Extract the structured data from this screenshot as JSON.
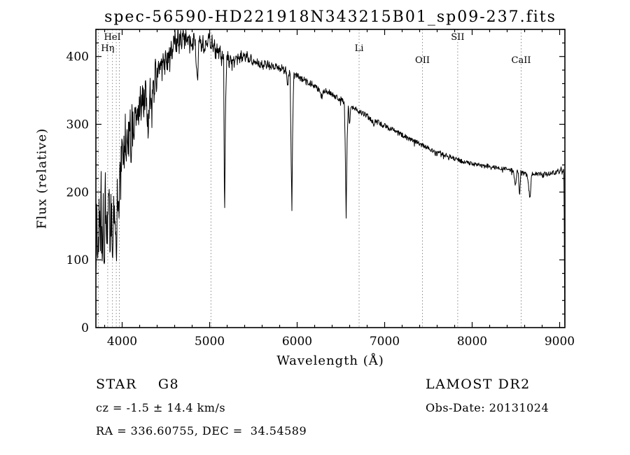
{
  "chart_data": {
    "type": "line",
    "title": "spec-56590-HD221918N343215B01_sp09-237.fits",
    "xlabel": "Wavelength (Å)",
    "ylabel": "Flux (relative)",
    "xlim": [
      3700,
      9060
    ],
    "ylim": [
      0,
      440
    ],
    "x_ticks": [
      4000,
      5000,
      6000,
      7000,
      8000,
      9000
    ],
    "x_minor_step": 200,
    "y_ticks": [
      0,
      100,
      200,
      300,
      400
    ],
    "y_minor_step": 20,
    "grid": false,
    "frame_color": "#000000",
    "marker_line_color": "#8a8a8a",
    "marker_lines": [
      3727,
      3835,
      3889,
      3933,
      3968,
      5015,
      6708,
      7432,
      7835,
      8560
    ],
    "line_markers": [
      {
        "label": "HeI",
        "x": 3889,
        "row": 0
      },
      {
        "label": "Hη",
        "x": 3835,
        "row": 1
      },
      {
        "label": "Li",
        "x": 6708,
        "row": 1
      },
      {
        "label": "SII",
        "x": 7835,
        "row": 0
      },
      {
        "label": "OII",
        "x": 7432,
        "row": 2
      },
      {
        "label": "CaII",
        "x": 8560,
        "row": 2
      }
    ],
    "noise_seed": 42,
    "noise_profile": [
      [
        3700,
        50
      ],
      [
        3950,
        42
      ],
      [
        4100,
        30
      ],
      [
        4300,
        22
      ],
      [
        4600,
        15
      ],
      [
        4900,
        11
      ],
      [
        5200,
        8
      ],
      [
        5600,
        6
      ],
      [
        6000,
        5
      ],
      [
        6600,
        4
      ],
      [
        7200,
        4
      ],
      [
        8000,
        3
      ],
      [
        9058,
        3
      ]
    ],
    "series": [
      {
        "name": "spectrum",
        "color": "#000000",
        "points": [
          [
            3700,
            70
          ],
          [
            3712,
            165
          ],
          [
            3724,
            75
          ],
          [
            3736,
            180
          ],
          [
            3748,
            100
          ],
          [
            3760,
            190
          ],
          [
            3772,
            85
          ],
          [
            3784,
            170
          ],
          [
            3796,
            110
          ],
          [
            3808,
            185
          ],
          [
            3820,
            105
          ],
          [
            3835,
            150
          ],
          [
            3850,
            215
          ],
          [
            3862,
            125
          ],
          [
            3874,
            185
          ],
          [
            3889,
            100
          ],
          [
            3902,
            205
          ],
          [
            3914,
            160
          ],
          [
            3925,
            175
          ],
          [
            3933,
            90
          ],
          [
            3945,
            225
          ],
          [
            3958,
            165
          ],
          [
            3970,
            235
          ],
          [
            3980,
            205
          ],
          [
            3990,
            240
          ],
          [
            4000,
            260
          ],
          [
            4015,
            225
          ],
          [
            4030,
            295
          ],
          [
            4045,
            260
          ],
          [
            4060,
            305
          ],
          [
            4075,
            270
          ],
          [
            4090,
            310
          ],
          [
            4101,
            245
          ],
          [
            4115,
            315
          ],
          [
            4130,
            285
          ],
          [
            4145,
            325
          ],
          [
            4160,
            295
          ],
          [
            4175,
            330
          ],
          [
            4190,
            305
          ],
          [
            4205,
            345
          ],
          [
            4220,
            315
          ],
          [
            4235,
            350
          ],
          [
            4250,
            325
          ],
          [
            4265,
            345
          ],
          [
            4280,
            330
          ],
          [
            4300,
            285
          ],
          [
            4315,
            360
          ],
          [
            4330,
            330
          ],
          [
            4340,
            305
          ],
          [
            4352,
            380
          ],
          [
            4366,
            345
          ],
          [
            4380,
            385
          ],
          [
            4395,
            355
          ],
          [
            4410,
            390
          ],
          [
            4425,
            365
          ],
          [
            4440,
            398
          ],
          [
            4455,
            375
          ],
          [
            4470,
            400
          ],
          [
            4485,
            382
          ],
          [
            4500,
            405
          ],
          [
            4515,
            388
          ],
          [
            4530,
            410
          ],
          [
            4545,
            392
          ],
          [
            4560,
            418
          ],
          [
            4575,
            400
          ],
          [
            4590,
            422
          ],
          [
            4605,
            430
          ],
          [
            4620,
            412
          ],
          [
            4635,
            432
          ],
          [
            4650,
            415
          ],
          [
            4665,
            435
          ],
          [
            4680,
            418
          ],
          [
            4700,
            438
          ],
          [
            4715,
            420
          ],
          [
            4730,
            434
          ],
          [
            4745,
            416
          ],
          [
            4760,
            430
          ],
          [
            4775,
            414
          ],
          [
            4790,
            428
          ],
          [
            4805,
            412
          ],
          [
            4820,
            430
          ],
          [
            4840,
            410
          ],
          [
            4861,
            358
          ],
          [
            4875,
            415
          ],
          [
            4890,
            428
          ],
          [
            4905,
            412
          ],
          [
            4920,
            426
          ],
          [
            4935,
            410
          ],
          [
            4950,
            425
          ],
          [
            4965,
            412
          ],
          [
            4980,
            424
          ],
          [
            5000,
            430
          ],
          [
            5015,
            415
          ],
          [
            5030,
            425
          ],
          [
            5045,
            410
          ],
          [
            5060,
            420
          ],
          [
            5075,
            406
          ],
          [
            5090,
            415
          ],
          [
            5105,
            405
          ],
          [
            5120,
            412
          ],
          [
            5135,
            398
          ],
          [
            5150,
            405
          ],
          [
            5160,
            395
          ],
          [
            5170,
            150
          ],
          [
            5180,
            310
          ],
          [
            5195,
            395
          ],
          [
            5210,
            402
          ],
          [
            5225,
            388
          ],
          [
            5240,
            398
          ],
          [
            5255,
            386
          ],
          [
            5270,
            396
          ],
          [
            5285,
            388
          ],
          [
            5300,
            404
          ],
          [
            5315,
            392
          ],
          [
            5330,
            404
          ],
          [
            5345,
            394
          ],
          [
            5360,
            402
          ],
          [
            5375,
            392
          ],
          [
            5390,
            400
          ],
          [
            5410,
            396
          ],
          [
            5430,
            402
          ],
          [
            5450,
            392
          ],
          [
            5470,
            398
          ],
          [
            5490,
            390
          ],
          [
            5510,
            396
          ],
          [
            5530,
            388
          ],
          [
            5550,
            394
          ],
          [
            5570,
            386
          ],
          [
            5590,
            392
          ],
          [
            5610,
            386
          ],
          [
            5630,
            391
          ],
          [
            5650,
            385
          ],
          [
            5670,
            390
          ],
          [
            5690,
            384
          ],
          [
            5710,
            388
          ],
          [
            5730,
            383
          ],
          [
            5750,
            387
          ],
          [
            5770,
            382
          ],
          [
            5790,
            386
          ],
          [
            5810,
            381
          ],
          [
            5830,
            384
          ],
          [
            5850,
            379
          ],
          [
            5870,
            382
          ],
          [
            5890,
            352
          ],
          [
            5905,
            378
          ],
          [
            5920,
            372
          ],
          [
            5932,
            240
          ],
          [
            5940,
            175
          ],
          [
            5950,
            305
          ],
          [
            5962,
            374
          ],
          [
            5975,
            370
          ],
          [
            5990,
            373
          ],
          [
            6010,
            371
          ],
          [
            6030,
            369
          ],
          [
            6050,
            367
          ],
          [
            6070,
            366
          ],
          [
            6090,
            364
          ],
          [
            6110,
            363
          ],
          [
            6130,
            361
          ],
          [
            6150,
            360
          ],
          [
            6170,
            359
          ],
          [
            6190,
            357
          ],
          [
            6210,
            356
          ],
          [
            6230,
            354
          ],
          [
            6250,
            352
          ],
          [
            6270,
            344
          ],
          [
            6285,
            340
          ],
          [
            6300,
            352
          ],
          [
            6320,
            350
          ],
          [
            6340,
            349
          ],
          [
            6360,
            347
          ],
          [
            6380,
            346
          ],
          [
            6400,
            344
          ],
          [
            6420,
            343
          ],
          [
            6440,
            341
          ],
          [
            6460,
            340
          ],
          [
            6480,
            338
          ],
          [
            6500,
            337
          ],
          [
            6520,
            334
          ],
          [
            6540,
            330
          ],
          [
            6552,
            245
          ],
          [
            6560,
            165
          ],
          [
            6572,
            282
          ],
          [
            6585,
            330
          ],
          [
            6598,
            298
          ],
          [
            6612,
            328
          ],
          [
            6630,
            326
          ],
          [
            6650,
            324
          ],
          [
            6670,
            322
          ],
          [
            6690,
            321
          ],
          [
            6710,
            319
          ],
          [
            6740,
            317
          ],
          [
            6770,
            315
          ],
          [
            6800,
            312
          ],
          [
            6830,
            309
          ],
          [
            6860,
            305
          ],
          [
            6875,
            298
          ],
          [
            6890,
            305
          ],
          [
            6920,
            303
          ],
          [
            6950,
            301
          ],
          [
            6980,
            299
          ],
          [
            7010,
            297
          ],
          [
            7040,
            295
          ],
          [
            7070,
            293
          ],
          [
            7100,
            291
          ],
          [
            7130,
            289
          ],
          [
            7160,
            287
          ],
          [
            7190,
            285
          ],
          [
            7220,
            283
          ],
          [
            7250,
            281
          ],
          [
            7280,
            279
          ],
          [
            7310,
            277
          ],
          [
            7340,
            275
          ],
          [
            7370,
            273
          ],
          [
            7400,
            271
          ],
          [
            7430,
            269
          ],
          [
            7460,
            267
          ],
          [
            7490,
            265
          ],
          [
            7520,
            263
          ],
          [
            7550,
            261
          ],
          [
            7580,
            257
          ],
          [
            7600,
            257
          ],
          [
            7630,
            258
          ],
          [
            7660,
            256
          ],
          [
            7690,
            255
          ],
          [
            7720,
            253
          ],
          [
            7750,
            252
          ],
          [
            7780,
            250
          ],
          [
            7810,
            249
          ],
          [
            7840,
            248
          ],
          [
            7870,
            246
          ],
          [
            7900,
            245
          ],
          [
            7930,
            244
          ],
          [
            7960,
            243
          ],
          [
            7990,
            242
          ],
          [
            8020,
            241
          ],
          [
            8050,
            240
          ],
          [
            8080,
            240
          ],
          [
            8110,
            239
          ],
          [
            8140,
            238
          ],
          [
            8170,
            239
          ],
          [
            8200,
            237
          ],
          [
            8230,
            238
          ],
          [
            8260,
            236
          ],
          [
            8290,
            237
          ],
          [
            8320,
            235
          ],
          [
            8350,
            236
          ],
          [
            8380,
            234
          ],
          [
            8410,
            235
          ],
          [
            8440,
            233
          ],
          [
            8470,
            231
          ],
          [
            8498,
            208
          ],
          [
            8512,
            231
          ],
          [
            8528,
            229
          ],
          [
            8542,
            190
          ],
          [
            8556,
            229
          ],
          [
            8580,
            228
          ],
          [
            8605,
            227
          ],
          [
            8630,
            225
          ],
          [
            8662,
            188
          ],
          [
            8678,
            227
          ],
          [
            8700,
            226
          ],
          [
            8725,
            227
          ],
          [
            8750,
            226
          ],
          [
            8775,
            227
          ],
          [
            8800,
            226
          ],
          [
            8825,
            227
          ],
          [
            8850,
            226
          ],
          [
            8875,
            227
          ],
          [
            8900,
            228
          ],
          [
            8925,
            229
          ],
          [
            8950,
            228
          ],
          [
            8975,
            232
          ],
          [
            9000,
            229
          ],
          [
            9015,
            236
          ],
          [
            9030,
            227
          ],
          [
            9042,
            234
          ],
          [
            9050,
            228
          ],
          [
            9054,
            110
          ],
          [
            9058,
            3
          ]
        ]
      }
    ]
  },
  "annotations": {
    "class_line": "STAR    G8",
    "cz_line": "cz = -1.5 ± 14.4 km/s",
    "radec_line": "RA = 336.60755, DEC =  34.54589",
    "survey": "LAMOST DR2",
    "obsdate": "Obs-Date: 20131024"
  }
}
